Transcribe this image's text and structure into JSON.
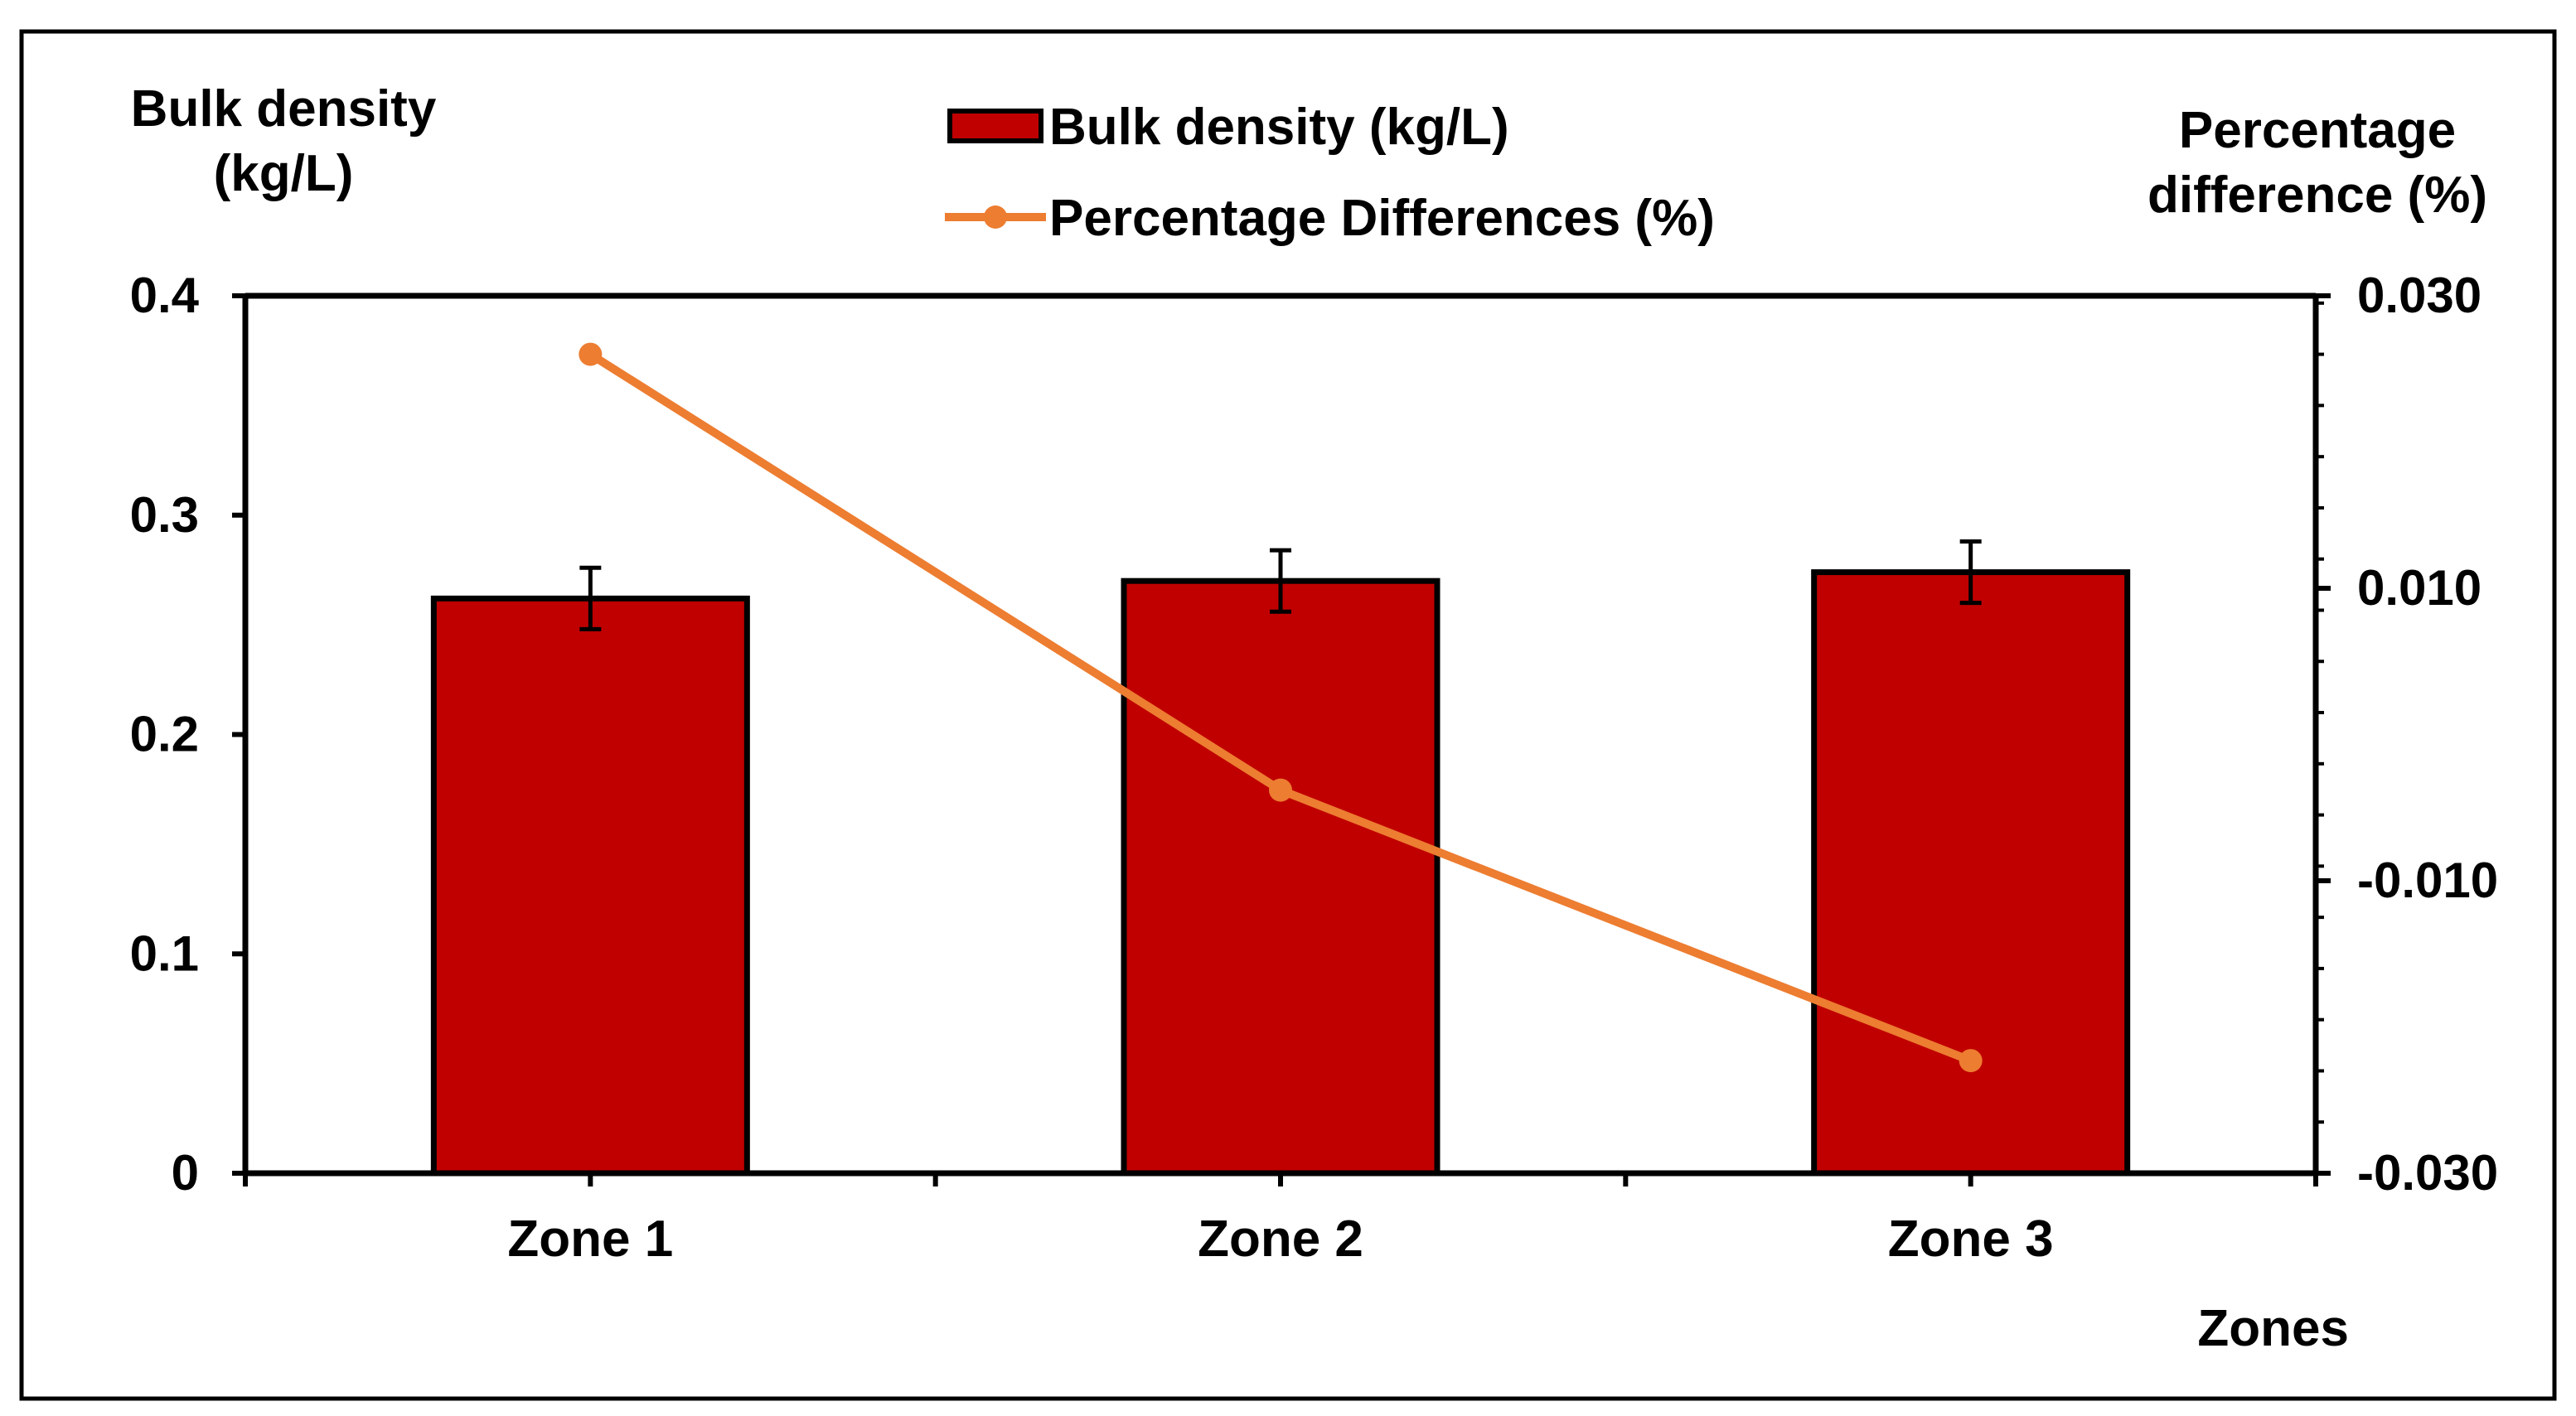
{
  "chart_data": {
    "type": "bar",
    "categories": [
      "Zone 1",
      "Zone 2",
      "Zone 3"
    ],
    "series": [
      {
        "name": "Bulk density (kg/L)",
        "kind": "bar",
        "axis": "left",
        "values": [
          0.262,
          0.27,
          0.274
        ],
        "error": [
          0.014,
          0.014,
          0.014
        ],
        "color": "#c00000"
      },
      {
        "name": "Percentage Differences (%)",
        "kind": "line",
        "axis": "right",
        "values": [
          0.026,
          -0.0038,
          -0.0223
        ],
        "color": "#ed7d31"
      }
    ],
    "xlabel": "Zones",
    "ylabel_left": [
      "Bulk density",
      "(kg/L)"
    ],
    "ylabel_right": [
      "Percentage",
      "difference (%)"
    ],
    "ylim_left": [
      0,
      0.4
    ],
    "ylim_right": [
      -0.03,
      0.03
    ],
    "yticks_left": [
      "0",
      "0.1",
      "0.2",
      "0.3",
      "0.4"
    ],
    "yticks_right": [
      "-0.030",
      "-0.010",
      "0.010",
      "0.030"
    ],
    "legend_position": "top-center",
    "grid": false,
    "border_color": "#000000"
  }
}
